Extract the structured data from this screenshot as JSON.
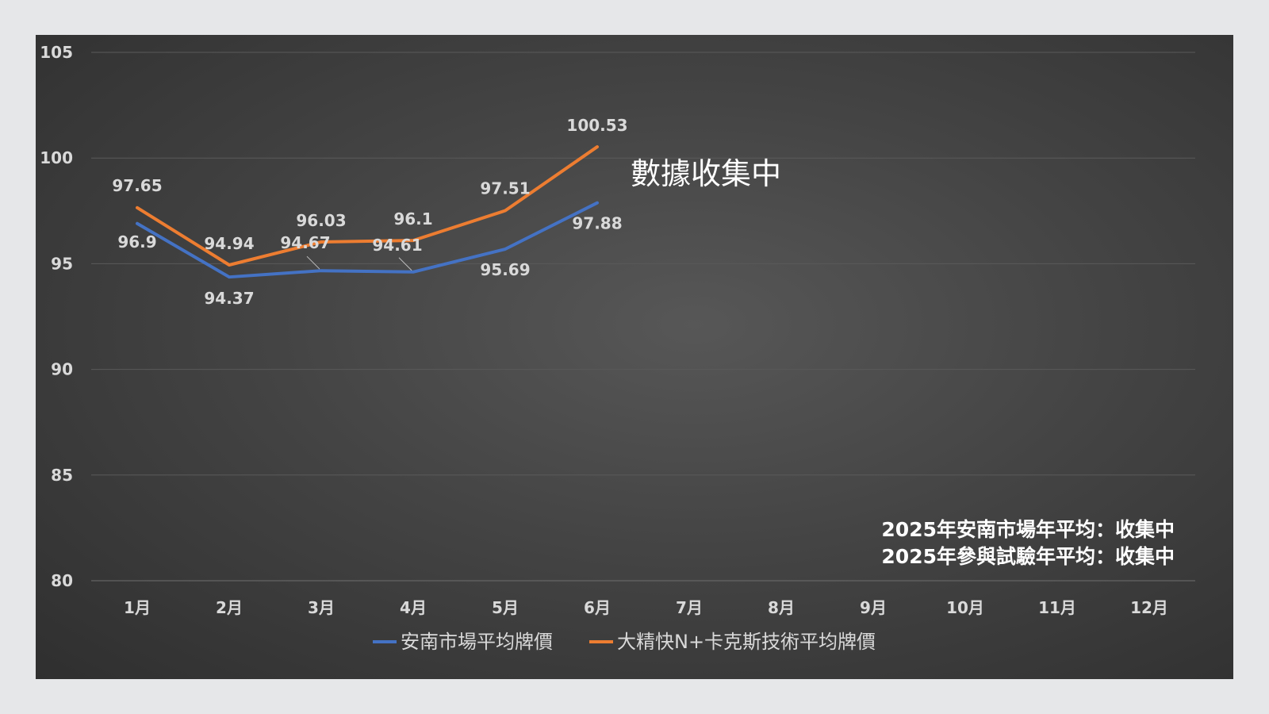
{
  "chart_data": {
    "type": "line",
    "categories": [
      "1月",
      "2月",
      "3月",
      "4月",
      "5月",
      "6月",
      "7月",
      "8月",
      "9月",
      "10月",
      "11月",
      "12月"
    ],
    "series": [
      {
        "name": "安南市場平均牌價",
        "color": "#4472c4",
        "values": [
          96.9,
          94.37,
          94.67,
          94.61,
          95.69,
          97.88,
          null,
          null,
          null,
          null,
          null,
          null
        ]
      },
      {
        "name": "大精快N+卡克斯技術平均牌價",
        "color": "#ed7d31",
        "values": [
          97.65,
          94.94,
          96.03,
          96.1,
          97.51,
          100.53,
          null,
          null,
          null,
          null,
          null,
          null
        ]
      }
    ],
    "ylim": [
      80,
      105
    ],
    "yticks": [
      80,
      85,
      90,
      95,
      100,
      105
    ],
    "grid": true,
    "legend": "bottom",
    "annotation": "數據收集中",
    "summary_lines": [
      "2025年安南市場年平均：收集中",
      "2025年參與試驗年平均：收集中"
    ]
  }
}
